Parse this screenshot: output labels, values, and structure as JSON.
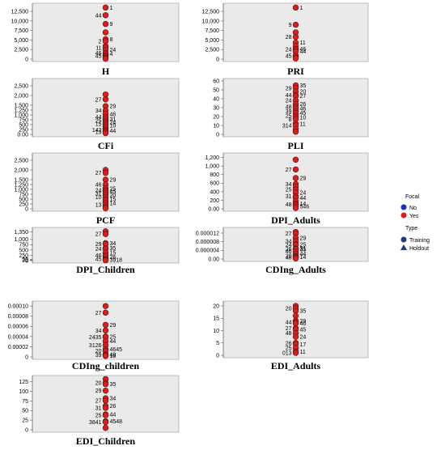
{
  "legend": {
    "focal_title": "Focal",
    "focal_items": [
      {
        "label": "No",
        "color": "#1a2fb8"
      },
      {
        "label": "Yes",
        "color": "#d42020"
      }
    ],
    "type_title": "Type",
    "type_items": [
      {
        "label": "Training",
        "marker": "circle",
        "color": "#1f3a7a"
      },
      {
        "label": "Holdout",
        "marker": "triangle",
        "color": "#1f3a7a"
      }
    ]
  },
  "colors": {
    "panel_bg": "#eaeaea",
    "point_fill": "#d42020",
    "point_stroke": "#5a1010"
  },
  "chart_data": [
    {
      "type": "scatter",
      "title": "H",
      "ylim": [
        0,
        14000
      ],
      "ticks": [
        "0",
        "2,500",
        "5,000",
        "7,500",
        "10,000",
        "12,500"
      ],
      "tick_values": [
        0,
        2500,
        5000,
        7500,
        10000,
        12500
      ],
      "points": [
        {
          "y": 13500,
          "label": "1"
        },
        {
          "y": 11500,
          "label": "44"
        },
        {
          "y": 9200,
          "label": "9"
        },
        {
          "y": 7000,
          "label": ""
        },
        {
          "y": 5200,
          "label": "8"
        },
        {
          "y": 4700,
          "label": "2"
        },
        {
          "y": 3400,
          "label": ""
        },
        {
          "y": 3000,
          "label": "11"
        },
        {
          "y": 2400,
          "label": "24"
        },
        {
          "y": 1600,
          "label": "46"
        },
        {
          "y": 1400,
          "label": "4"
        },
        {
          "y": 900,
          "label": "45"
        },
        {
          "y": 600,
          "label": ""
        },
        {
          "y": 300,
          "label": ""
        },
        {
          "y": 100,
          "label": ""
        }
      ]
    },
    {
      "type": "scatter",
      "title": "PRI",
      "ylim": [
        0,
        14000
      ],
      "ticks": [
        "0",
        "2,500",
        "5,000",
        "7,500",
        "10,000",
        "12,500"
      ],
      "tick_values": [
        0,
        2500,
        5000,
        7500,
        10000,
        12500
      ],
      "points": [
        {
          "y": 13500,
          "label": "1"
        },
        {
          "y": 9000,
          "label": "9"
        },
        {
          "y": 7000,
          "label": ""
        },
        {
          "y": 5800,
          "label": "28"
        },
        {
          "y": 4300,
          "label": "11"
        },
        {
          "y": 3400,
          "label": ""
        },
        {
          "y": 2600,
          "label": "46"
        },
        {
          "y": 2500,
          "label": "24"
        },
        {
          "y": 2000,
          "label": "44"
        },
        {
          "y": 900,
          "label": "45"
        },
        {
          "y": 500,
          "label": ""
        },
        {
          "y": 200,
          "label": ""
        }
      ]
    },
    {
      "type": "scatter",
      "title": "CFi",
      "ylim": [
        0,
        2750
      ],
      "ticks": [
        "0.00",
        "250",
        "500",
        "750",
        "1,000",
        "1,250",
        "1,500",
        "2,000",
        "2,500"
      ],
      "tick_values": [
        0,
        250,
        500,
        750,
        1000,
        1250,
        1500,
        2000,
        2500
      ],
      "points": [
        {
          "y": 2050,
          "label": ""
        },
        {
          "y": 1800,
          "label": "27"
        },
        {
          "y": 1450,
          "label": "29"
        },
        {
          "y": 1220,
          "label": "34"
        },
        {
          "y": 1050,
          "label": "46"
        },
        {
          "y": 900,
          "label": "44"
        },
        {
          "y": 800,
          "label": "31"
        },
        {
          "y": 700,
          "label": "25"
        },
        {
          "y": 620,
          "label": "24"
        },
        {
          "y": 540,
          "label": "15"
        },
        {
          "y": 460,
          "label": "10"
        },
        {
          "y": 380,
          "label": ""
        },
        {
          "y": 300,
          "label": ""
        },
        {
          "y": 220,
          "label": "142"
        },
        {
          "y": 180,
          "label": "44"
        },
        {
          "y": 120,
          "label": "13"
        },
        {
          "y": 60,
          "label": ""
        }
      ]
    },
    {
      "type": "scatter",
      "title": "PLI",
      "ylim": [
        0,
        60
      ],
      "ticks": [
        "0",
        "10",
        "20",
        "30",
        "40",
        "50",
        "60"
      ],
      "tick_values": [
        0,
        10,
        20,
        30,
        40,
        50,
        60
      ],
      "points": [
        {
          "y": 55,
          "label": "35"
        },
        {
          "y": 52,
          "label": "29"
        },
        {
          "y": 48,
          "label": "20"
        },
        {
          "y": 44,
          "label": "44"
        },
        {
          "y": 43,
          "label": "27"
        },
        {
          "y": 38,
          "label": "24"
        },
        {
          "y": 34,
          "label": "26"
        },
        {
          "y": 31,
          "label": "48"
        },
        {
          "y": 29,
          "label": "46"
        },
        {
          "y": 26,
          "label": "39"
        },
        {
          "y": 24,
          "label": "45"
        },
        {
          "y": 21,
          "label": "25"
        },
        {
          "y": 19,
          "label": "10"
        },
        {
          "y": 17,
          "label": "8"
        },
        {
          "y": 12,
          "label": "11"
        },
        {
          "y": 10,
          "label": "314"
        },
        {
          "y": 6,
          "label": ""
        },
        {
          "y": 3,
          "label": ""
        }
      ]
    },
    {
      "type": "scatter",
      "title": "PCF",
      "ylim": [
        0,
        2750
      ],
      "ticks": [
        "0",
        "250",
        "500",
        "750",
        "1,000",
        "1,250",
        "1,500",
        "2,000",
        "2,500"
      ],
      "tick_values": [
        0,
        250,
        500,
        750,
        1000,
        1250,
        1500,
        2000,
        2500
      ],
      "points": [
        {
          "y": 2000,
          "label": ""
        },
        {
          "y": 1850,
          "label": "27"
        },
        {
          "y": 1500,
          "label": "29"
        },
        {
          "y": 1250,
          "label": "46"
        },
        {
          "y": 1050,
          "label": "25"
        },
        {
          "y": 950,
          "label": "24"
        },
        {
          "y": 900,
          "label": "45"
        },
        {
          "y": 800,
          "label": "31"
        },
        {
          "y": 700,
          "label": "20"
        },
        {
          "y": 600,
          "label": "10"
        },
        {
          "y": 500,
          "label": "15"
        },
        {
          "y": 420,
          "label": ""
        },
        {
          "y": 300,
          "label": "14"
        },
        {
          "y": 200,
          "label": "13"
        },
        {
          "y": 100,
          "label": ""
        },
        {
          "y": 30,
          "label": ""
        }
      ]
    },
    {
      "type": "scatter",
      "title": "DPI_Adults",
      "ylim": [
        0,
        1250
      ],
      "ticks": [
        "0.00",
        "200",
        "400",
        "600",
        "800",
        "1,000",
        "1,200"
      ],
      "tick_values": [
        0,
        200,
        400,
        600,
        800,
        1000,
        1200
      ],
      "points": [
        {
          "y": 1150,
          "label": ""
        },
        {
          "y": 920,
          "label": "27"
        },
        {
          "y": 720,
          "label": "29"
        },
        {
          "y": 580,
          "label": "34"
        },
        {
          "y": 520,
          "label": ""
        },
        {
          "y": 450,
          "label": "25"
        },
        {
          "y": 380,
          "label": "24"
        },
        {
          "y": 290,
          "label": "31"
        },
        {
          "y": 260,
          "label": "44"
        },
        {
          "y": 180,
          "label": ""
        },
        {
          "y": 120,
          "label": "14"
        },
        {
          "y": 100,
          "label": "48"
        },
        {
          "y": 60,
          "label": "546"
        },
        {
          "y": 20,
          "label": ""
        }
      ]
    },
    {
      "type": "scatter",
      "title": "DPI_Children",
      "ylim": [
        0,
        1450
      ],
      "ticks": [
        "0",
        "25",
        "50",
        "250",
        "500",
        "750",
        "1,000",
        "1,350"
      ],
      "tick_values": [
        0,
        25,
        50,
        250,
        500,
        750,
        1000,
        1350
      ],
      "points": [
        {
          "y": 1380,
          "label": ""
        },
        {
          "y": 1250,
          "label": "27"
        },
        {
          "y": 820,
          "label": "34"
        },
        {
          "y": 780,
          "label": "29"
        },
        {
          "y": 590,
          "label": "35"
        },
        {
          "y": 560,
          "label": "24"
        },
        {
          "y": 380,
          "label": "15"
        },
        {
          "y": 250,
          "label": "46"
        },
        {
          "y": 180,
          "label": "26"
        },
        {
          "y": 80,
          "label": "45"
        },
        {
          "y": 40,
          "label": "3918"
        },
        {
          "y": 15,
          "label": ""
        }
      ]
    },
    {
      "type": "scatter",
      "title": "CDIng_Adults",
      "ylim": [
        0,
        1.35e-05
      ],
      "ticks": [
        "0.00",
        "0.000004",
        "0.000008",
        "0.000012"
      ],
      "tick_values": [
        0,
        4e-06,
        8e-06,
        1.2e-05
      ],
      "points": [
        {
          "y": 1.25e-05,
          "label": ""
        },
        {
          "y": 1.18e-05,
          "label": "27"
        },
        {
          "y": 9.8e-06,
          "label": "29"
        },
        {
          "y": 8.2e-06,
          "label": "34"
        },
        {
          "y": 6.8e-06,
          "label": "25"
        },
        {
          "y": 6.6e-06,
          "label": "24"
        },
        {
          "y": 4.9e-06,
          "label": "31"
        },
        {
          "y": 4.7e-06,
          "label": "26"
        },
        {
          "y": 4.5e-06,
          "label": "35"
        },
        {
          "y": 3.5e-06,
          "label": "46"
        },
        {
          "y": 2.5e-06,
          "label": "44"
        },
        {
          "y": 1.5e-06,
          "label": "20"
        },
        {
          "y": 1e-06,
          "label": "14"
        },
        {
          "y": 8e-07,
          "label": "48"
        },
        {
          "y": 3e-07,
          "label": ""
        }
      ]
    },
    {
      "type": "scatter",
      "title": "CDIng_children",
      "ylim": [
        0,
        0.000105
      ],
      "ticks": [
        "0",
        "0.00002",
        "0.00004",
        "0.00006",
        "0.00008",
        "0.00010"
      ],
      "tick_values": [
        0,
        2e-05,
        4e-05,
        6e-05,
        8e-05,
        0.0001
      ],
      "points": [
        {
          "y": 0.0001,
          "label": ""
        },
        {
          "y": 8.7e-05,
          "label": "27"
        },
        {
          "y": 6.3e-05,
          "label": "29"
        },
        {
          "y": 5.2e-05,
          "label": "34"
        },
        {
          "y": 4e-05,
          "label": "25"
        },
        {
          "y": 3.9e-05,
          "label": "2435"
        },
        {
          "y": 3.1e-05,
          "label": "44"
        },
        {
          "y": 2.3e-05,
          "label": "3126"
        },
        {
          "y": 1.5e-05,
          "label": "4645"
        },
        {
          "y": 1.2e-05,
          "label": "20"
        },
        {
          "y": 5e-06,
          "label": "48"
        },
        {
          "y": 4e-06,
          "label": "39"
        },
        {
          "y": 2e-06,
          "label": "18"
        }
      ]
    },
    {
      "type": "scatter",
      "title": "EDI_Adults",
      "ylim": [
        0,
        21
      ],
      "ticks": [
        "0",
        "5",
        "10",
        "15",
        "20"
      ],
      "tick_values": [
        0,
        5,
        10,
        15,
        20
      ],
      "points": [
        {
          "y": 20,
          "label": ""
        },
        {
          "y": 19,
          "label": "20"
        },
        {
          "y": 18,
          "label": "35"
        },
        {
          "y": 16,
          "label": ""
        },
        {
          "y": 14,
          "label": "29"
        },
        {
          "y": 13.5,
          "label": "44"
        },
        {
          "y": 13,
          "label": "46"
        },
        {
          "y": 11,
          "label": "27"
        },
        {
          "y": 10.5,
          "label": "45"
        },
        {
          "y": 9,
          "label": "48"
        },
        {
          "y": 7.5,
          "label": "24"
        },
        {
          "y": 5,
          "label": "26"
        },
        {
          "y": 4.5,
          "label": "17"
        },
        {
          "y": 3,
          "label": "25"
        },
        {
          "y": 1.5,
          "label": "11"
        },
        {
          "y": 1,
          "label": "013"
        }
      ]
    },
    {
      "type": "scatter",
      "title": "EDI_Children",
      "ylim": [
        0,
        135
      ],
      "ticks": [
        "0",
        "25",
        "50",
        "75",
        "100",
        "125"
      ],
      "tick_values": [
        0,
        25,
        50,
        75,
        100,
        125
      ],
      "points": [
        {
          "y": 132,
          "label": ""
        },
        {
          "y": 122,
          "label": "20"
        },
        {
          "y": 119,
          "label": "35"
        },
        {
          "y": 102,
          "label": "29"
        },
        {
          "y": 82,
          "label": "34"
        },
        {
          "y": 76,
          "label": "27"
        },
        {
          "y": 62,
          "label": "26"
        },
        {
          "y": 57,
          "label": "31"
        },
        {
          "y": 40,
          "label": "44"
        },
        {
          "y": 38,
          "label": "25"
        },
        {
          "y": 22,
          "label": "4548"
        },
        {
          "y": 20,
          "label": "3841"
        },
        {
          "y": 5,
          "label": ""
        }
      ]
    }
  ]
}
